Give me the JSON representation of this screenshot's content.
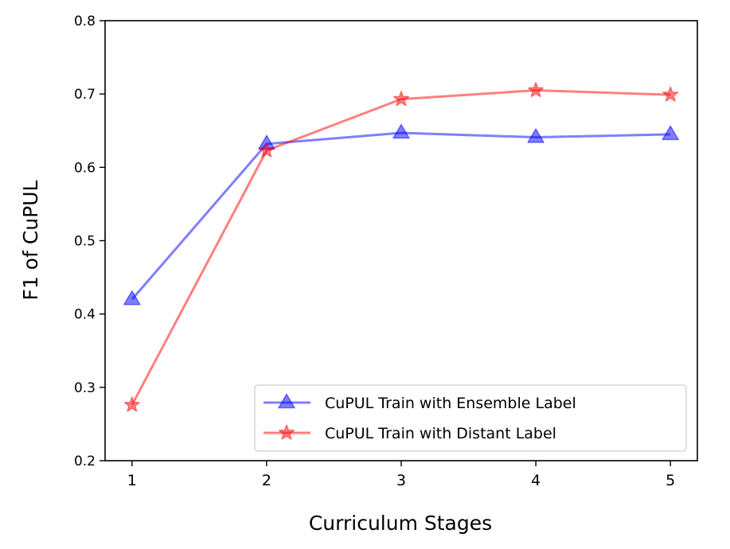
{
  "chart_data": {
    "type": "line",
    "title": "",
    "xlabel": "Curriculum Stages",
    "ylabel": "F1 of CuPUL",
    "x": [
      1,
      2,
      3,
      4,
      5
    ],
    "xticks": [
      "1",
      "2",
      "3",
      "4",
      "5"
    ],
    "xlim": [
      0.8,
      5.2
    ],
    "yticks": [
      "0.2",
      "0.3",
      "0.4",
      "0.5",
      "0.6",
      "0.7",
      "0.8"
    ],
    "ylim": [
      0.2,
      0.8
    ],
    "grid": false,
    "legend_position": "lower-right",
    "series": [
      {
        "name": "CuPUL Train with Ensemble Label",
        "values": [
          0.42,
          0.632,
          0.647,
          0.641,
          0.645
        ],
        "color": "#0000ff",
        "marker": "triangle"
      },
      {
        "name": "CuPUL Train with Distant Label",
        "values": [
          0.276,
          0.623,
          0.693,
          0.705,
          0.699
        ],
        "color": "#ff0000",
        "marker": "star"
      }
    ]
  }
}
